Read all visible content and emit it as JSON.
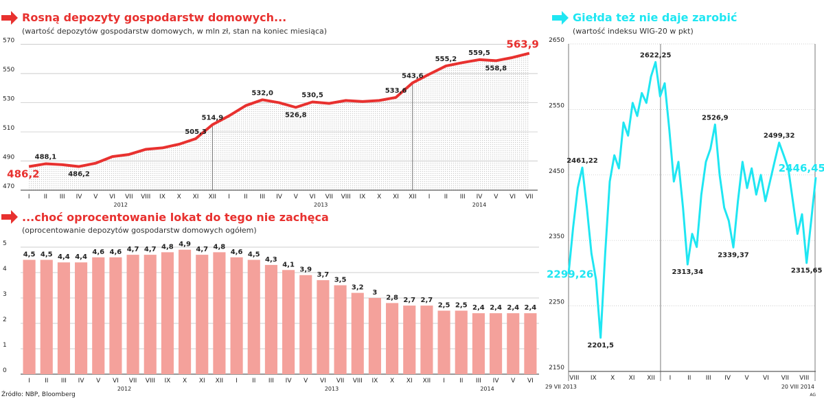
{
  "chart_data": [
    {
      "type": "line",
      "title": "Rosną depozyty gospodarstw domowych...",
      "subtitle": "(wartość depozytów gospodarstw domowych, w mln zł, stan na koniec miesiąca)",
      "categories": [
        "I",
        "II",
        "III",
        "IV",
        "V",
        "VI",
        "VII",
        "VIII",
        "IX",
        "X",
        "XI",
        "XII",
        "I",
        "II",
        "III",
        "IV",
        "V",
        "VI",
        "VII",
        "VIII",
        "IX",
        "X",
        "XI",
        "XII",
        "I",
        "II",
        "III",
        "IV",
        "V",
        "VI",
        "VII"
      ],
      "years": [
        "2012",
        "2013",
        "2014"
      ],
      "values": [
        486.2,
        488.1,
        487.5,
        486.2,
        488.5,
        493,
        494.5,
        498,
        499,
        501.5,
        505.3,
        514.9,
        521,
        528,
        532.0,
        530,
        526.8,
        530.5,
        529.5,
        531.5,
        530.8,
        531.5,
        533.6,
        543.6,
        549.5,
        555.2,
        557.5,
        559.5,
        558.8,
        561,
        563.9
      ],
      "value_labels": [
        "486,2",
        "488,1",
        null,
        "486,2",
        null,
        null,
        null,
        null,
        null,
        null,
        "505,3",
        "514,9",
        null,
        null,
        "532,0",
        null,
        "526,8",
        "530,5",
        null,
        null,
        null,
        null,
        "533,6",
        "543,6",
        null,
        "555,2",
        null,
        "559,5",
        "558,8",
        null,
        "563,9"
      ],
      "color": "#e8312f",
      "ylim": [
        470,
        575
      ],
      "yticks": [
        470,
        490,
        510,
        530,
        550,
        570
      ],
      "grid": true
    },
    {
      "type": "bar",
      "title": "...choć oprocentowanie lokat do tego nie zachęca",
      "subtitle": "(oprocentowanie depozytów gospodarstw domowych ogółem)",
      "categories": [
        "I",
        "II",
        "III",
        "IV",
        "V",
        "VI",
        "VII",
        "VIII",
        "IX",
        "X",
        "XI",
        "XII",
        "I",
        "II",
        "III",
        "IV",
        "V",
        "VI",
        "VII",
        "VIII",
        "IX",
        "X",
        "XI",
        "XII",
        "I",
        "II",
        "III",
        "IV",
        "V",
        "VI"
      ],
      "years": [
        "2012",
        "2013",
        "2014"
      ],
      "values": [
        4.5,
        4.5,
        4.4,
        4.4,
        4.6,
        4.6,
        4.7,
        4.7,
        4.8,
        4.9,
        4.7,
        4.8,
        4.6,
        4.5,
        4.3,
        4.1,
        3.9,
        3.7,
        3.5,
        3.2,
        3,
        2.8,
        2.7,
        2.7,
        2.5,
        2.5,
        2.4,
        2.4,
        2.4,
        2.4
      ],
      "value_labels": [
        "4,5",
        "4,5",
        "4,4",
        "4,4",
        "4,6",
        "4,6",
        "4,7",
        "4,7",
        "4,8",
        "4,9",
        "4,7",
        "4,8",
        "4,6",
        "4,5",
        "4,3",
        "4,1",
        "3,9",
        "3,7",
        "3,5",
        "3,2",
        "3",
        "2,8",
        "2,7",
        "2,7",
        "2,5",
        "2,5",
        "2,4",
        "2,4",
        "2,4",
        "2,4"
      ],
      "color": "#f4a19b",
      "ylim": [
        0,
        5
      ],
      "yticks": [
        0,
        1,
        2,
        3,
        4,
        5
      ],
      "grid": true
    },
    {
      "type": "line",
      "title": "Giełda też nie daje zarobić",
      "subtitle": "(wartość indeksu WIG-20 w pkt)",
      "x_labels": [
        "VIII",
        "IX",
        "X",
        "XI",
        "XII",
        "I",
        "II",
        "III",
        "IV",
        "V",
        "VI",
        "VII",
        "VIII"
      ],
      "start_label": "29 VII 2013",
      "end_label": "20 VIII 2014",
      "values": [
        2299.26,
        2370,
        2430,
        2461.22,
        2400,
        2330,
        2290,
        2201.5,
        2330,
        2440,
        2480,
        2460,
        2530,
        2510,
        2560,
        2540,
        2575,
        2560,
        2600,
        2622.25,
        2570,
        2590,
        2520,
        2440,
        2470,
        2400,
        2313.34,
        2360,
        2340,
        2420,
        2470,
        2490,
        2526.9,
        2450,
        2400,
        2380,
        2339.37,
        2410,
        2470,
        2430,
        2460,
        2420,
        2450,
        2410,
        2440,
        2470,
        2499.32,
        2480,
        2460,
        2410,
        2360,
        2390,
        2315.65,
        2380,
        2446.45
      ],
      "value_labels": [
        "2299,26",
        null,
        null,
        "2461,22",
        null,
        null,
        null,
        "2201,5",
        null,
        null,
        null,
        null,
        null,
        null,
        null,
        null,
        null,
        null,
        null,
        "2622,25",
        null,
        null,
        null,
        null,
        null,
        null,
        "2313,34",
        null,
        null,
        null,
        null,
        null,
        "2526,9",
        null,
        null,
        null,
        "2339,37",
        null,
        null,
        null,
        null,
        null,
        null,
        null,
        null,
        null,
        "2499,32",
        null,
        null,
        null,
        null,
        null,
        "2315,65",
        null,
        "2446,45"
      ],
      "color": "#1fe6f2",
      "ylim": [
        2150,
        2650
      ],
      "yticks": [
        2150,
        2250,
        2350,
        2450,
        2550,
        2650
      ],
      "grid": true
    }
  ],
  "footer": {
    "source": "Źródło: NBP, Bloomberg",
    "credit": "AG"
  }
}
